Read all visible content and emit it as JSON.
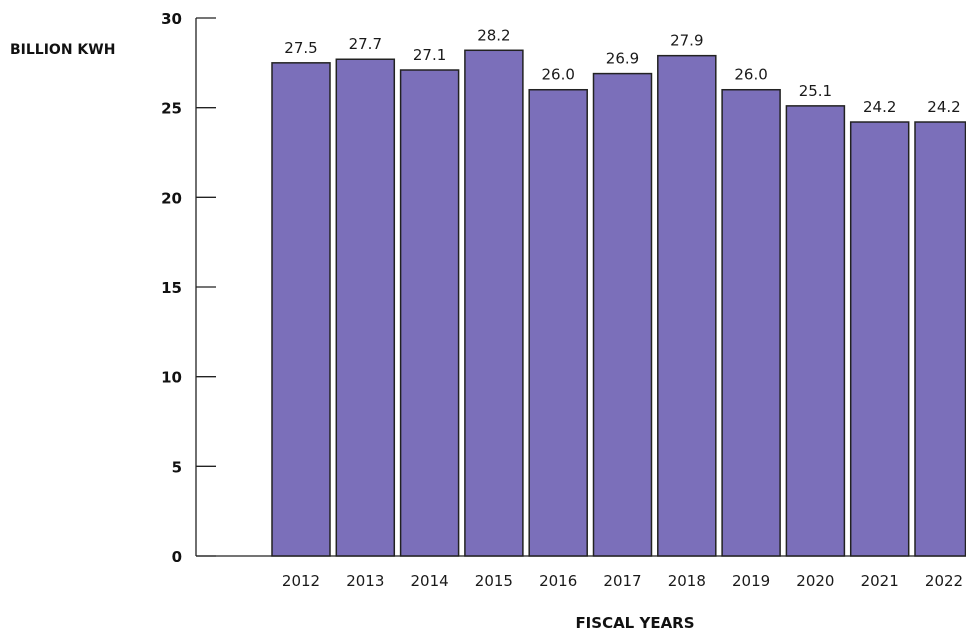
{
  "chart_data": {
    "type": "bar",
    "categories": [
      "2012",
      "2013",
      "2014",
      "2015",
      "2016",
      "2017",
      "2018",
      "2019",
      "2020",
      "2021",
      "2022"
    ],
    "values": [
      27.5,
      27.7,
      27.1,
      28.2,
      26.0,
      26.9,
      27.9,
      26.0,
      25.1,
      24.2,
      24.2
    ],
    "data_labels": [
      "27.5",
      "27.7",
      "27.1",
      "28.2",
      "26.0",
      "26.9",
      "27.9",
      "26.0",
      "25.1",
      "24.2",
      "24.2"
    ],
    "ylabel": "BILLION KWH",
    "xlabel": "FISCAL YEARS",
    "ylim": [
      0,
      30
    ],
    "yticks": [
      "0",
      "5",
      "10",
      "15",
      "20",
      "25",
      "30"
    ],
    "grid": false,
    "bar_color": "#7b6fba"
  }
}
